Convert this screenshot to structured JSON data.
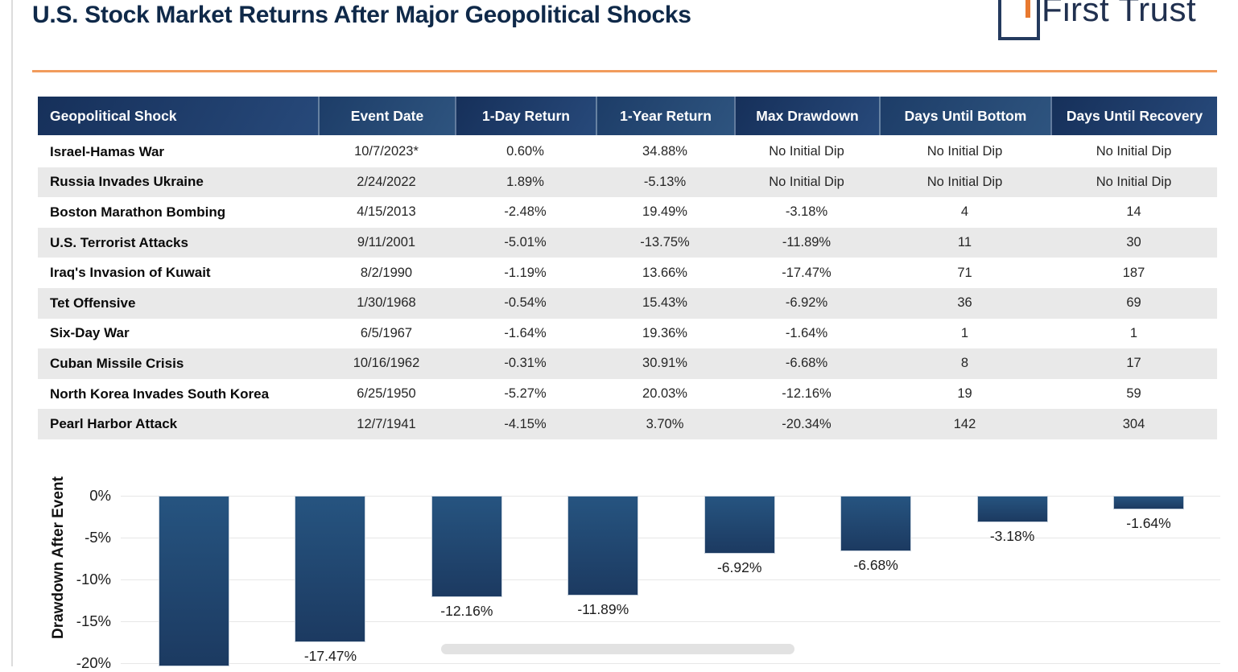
{
  "page": {
    "title": "U.S. Stock Market Returns After Major Geopolitical Shocks"
  },
  "logo": {
    "name": "First Trust"
  },
  "colors": {
    "accent_orange": "#f19b5c",
    "header_navy_dark": "#16305a",
    "header_navy_light": "#1d3d68",
    "bar_gradient_top": "#265480",
    "bar_gradient_bottom": "#1c3a61",
    "row_stripe_gray": "#e9e9e9",
    "title_navy": "#0f2949"
  },
  "table": {
    "columns": [
      "Geopolitical Shock",
      "Event Date",
      "1-Day Return",
      "1-Year Return",
      "Max Drawdown",
      "Days Until Bottom",
      "Days Until Recovery"
    ],
    "rows": [
      {
        "shock": "Israel-Hamas War",
        "date": "10/7/2023*",
        "day1": "0.60%",
        "year1": "34.88%",
        "maxdd": "No Initial Dip",
        "days_bottom": "No Initial Dip",
        "days_recovery": "No Initial Dip"
      },
      {
        "shock": "Russia Invades Ukraine",
        "date": "2/24/2022",
        "day1": "1.89%",
        "year1": "-5.13%",
        "maxdd": "No Initial Dip",
        "days_bottom": "No Initial Dip",
        "days_recovery": "No Initial Dip"
      },
      {
        "shock": "Boston Marathon Bombing",
        "date": "4/15/2013",
        "day1": "-2.48%",
        "year1": "19.49%",
        "maxdd": "-3.18%",
        "days_bottom": "4",
        "days_recovery": "14"
      },
      {
        "shock": "U.S. Terrorist Attacks",
        "date": "9/11/2001",
        "day1": "-5.01%",
        "year1": "-13.75%",
        "maxdd": "-11.89%",
        "days_bottom": "11",
        "days_recovery": "30"
      },
      {
        "shock": "Iraq's Invasion of Kuwait",
        "date": "8/2/1990",
        "day1": "-1.19%",
        "year1": "13.66%",
        "maxdd": "-17.47%",
        "days_bottom": "71",
        "days_recovery": "187"
      },
      {
        "shock": "Tet Offensive",
        "date": "1/30/1968",
        "day1": "-0.54%",
        "year1": "15.43%",
        "maxdd": "-6.92%",
        "days_bottom": "36",
        "days_recovery": "69"
      },
      {
        "shock": "Six-Day War",
        "date": "6/5/1967",
        "day1": "-1.64%",
        "year1": "19.36%",
        "maxdd": "-1.64%",
        "days_bottom": "1",
        "days_recovery": "1"
      },
      {
        "shock": "Cuban Missile Crisis",
        "date": "10/16/1962",
        "day1": "-0.31%",
        "year1": "30.91%",
        "maxdd": "-6.68%",
        "days_bottom": "8",
        "days_recovery": "17"
      },
      {
        "shock": "North Korea Invades South Korea",
        "date": "6/25/1950",
        "day1": "-5.27%",
        "year1": "20.03%",
        "maxdd": "-12.16%",
        "days_bottom": "19",
        "days_recovery": "59"
      },
      {
        "shock": "Pearl Harbor Attack",
        "date": "12/7/1941",
        "day1": "-4.15%",
        "year1": "3.70%",
        "maxdd": "-20.34%",
        "days_bottom": "142",
        "days_recovery": "304"
      }
    ]
  },
  "chart": {
    "ylabel": "Drawdown After Event"
  },
  "chart_data": {
    "type": "bar",
    "title": "",
    "xlabel": "",
    "ylabel": "Drawdown After Event",
    "values": [
      -20.34,
      -17.47,
      -12.16,
      -11.89,
      -6.92,
      -6.68,
      -3.18,
      -1.64
    ],
    "bar_labels": [
      "",
      "-17.47%",
      "-12.16%",
      "-11.89%",
      "-6.92%",
      "-6.68%",
      "-3.18%",
      "-1.64%"
    ],
    "ytick_labels": [
      "0%",
      "-5%",
      "-10%",
      "-15%",
      "-20%"
    ],
    "ytick_values": [
      0,
      -5,
      -10,
      -15,
      -20
    ],
    "ylim": [
      0,
      -21
    ],
    "grid": true,
    "legend": false,
    "note": "bottom of first bar and its data label are cut off by the viewport"
  }
}
